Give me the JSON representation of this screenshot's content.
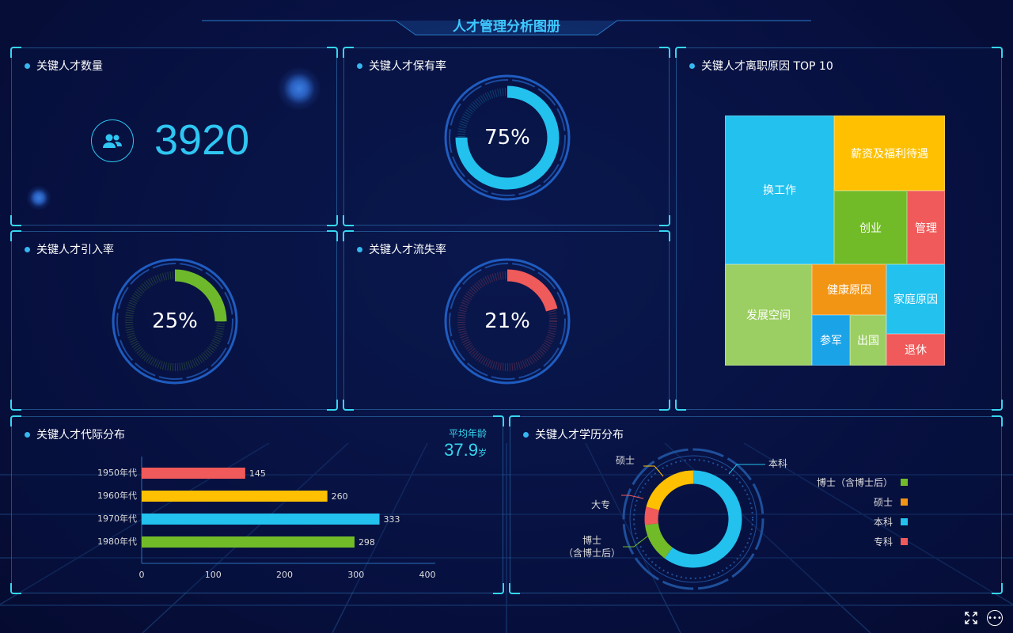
{
  "header": {
    "title": "人才管理分析图册"
  },
  "talent_count": {
    "title": "关键人才数量",
    "value": "3920",
    "icon": "users-icon"
  },
  "retention": {
    "title": "关键人才保有率",
    "label": "75%",
    "value": 75,
    "color": "#22c1ee"
  },
  "intro": {
    "title": "关键人才引入率",
    "label": "25%",
    "value": 25,
    "color": "#6db92b"
  },
  "loss": {
    "title": "关键人才流失率",
    "label": "21%",
    "value": 21,
    "color": "#ef5a5a"
  },
  "reasons": {
    "title": "关键人才离职原因 TOP 10",
    "items": [
      {
        "label": "换工作",
        "color": "#22c1ee"
      },
      {
        "label": "薪资及福利待遇",
        "color": "#fec000"
      },
      {
        "label": "创业",
        "color": "#72bb28"
      },
      {
        "label": "管理",
        "color": "#f05a5a"
      },
      {
        "label": "发展空间",
        "color": "#9ccf63"
      },
      {
        "label": "健康原因",
        "color": "#f39514"
      },
      {
        "label": "家庭原因",
        "color": "#22c1ee"
      },
      {
        "label": "参军",
        "color": "#1ba3e8"
      },
      {
        "label": "出国",
        "color": "#9ccf63"
      },
      {
        "label": "退休",
        "color": "#f05a5a"
      }
    ]
  },
  "generation": {
    "title": "关键人才代际分布",
    "avg_label": "平均年龄",
    "avg_value": "37.9",
    "avg_unit": "岁",
    "chart_data": {
      "type": "bar",
      "orientation": "horizontal",
      "categories": [
        "1950年代",
        "1960年代",
        "1970年代",
        "1980年代"
      ],
      "values": [
        145,
        260,
        333,
        298
      ],
      "colors": [
        "#f05a5a",
        "#fec000",
        "#22c1ee",
        "#72bb28"
      ],
      "xlim": [
        0,
        400
      ],
      "xticks": [
        "0",
        "100",
        "200",
        "300",
        "400"
      ]
    }
  },
  "education": {
    "title": "关键人才学历分布",
    "chart_data": {
      "type": "pie",
      "donut": true,
      "slices": [
        {
          "name": "本科",
          "value": 60,
          "color": "#22c1ee"
        },
        {
          "name": "博士（含博士后）",
          "value": 13,
          "color": "#72bb28"
        },
        {
          "name": "大专",
          "value": 6,
          "color": "#f05a5a"
        },
        {
          "name": "硕士",
          "value": 21,
          "color": "#fec000"
        }
      ]
    },
    "callouts": {
      "benke": "本科",
      "shuoshi": "硕士",
      "dazhuan": "大专",
      "boshi1": "博士",
      "boshi2": "（含博士后）"
    },
    "legend": [
      {
        "label": "博士（含博士后）",
        "color": "#72bb28"
      },
      {
        "label": "硕士",
        "color": "#f39514"
      },
      {
        "label": "本科",
        "color": "#22c1ee"
      },
      {
        "label": "专科",
        "color": "#f05a5a"
      }
    ]
  },
  "footer": {
    "fullscreen_icon": "fullscreen-icon",
    "more_icon": "more-icon"
  }
}
